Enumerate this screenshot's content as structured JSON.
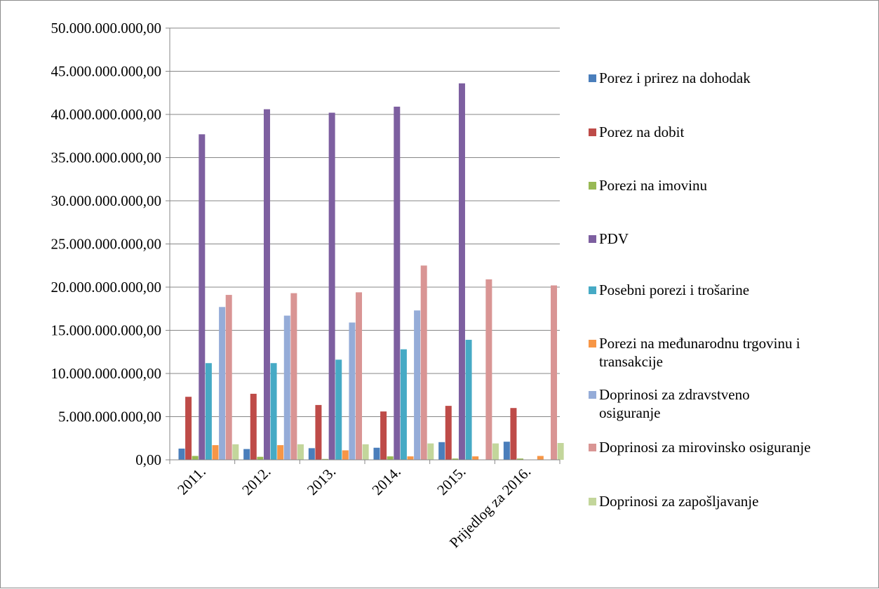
{
  "chart_data": {
    "type": "bar",
    "title": "",
    "xlabel": "",
    "ylabel": "",
    "ylim": [
      0,
      50000000000
    ],
    "y_ticks": [
      "0,00",
      "5.000.000.000,00",
      "10.000.000.000,00",
      "15.000.000.000,00",
      "20.000.000.000,00",
      "25.000.000.000,00",
      "30.000.000.000,00",
      "35.000.000.000,00",
      "40.000.000.000,00",
      "45.000.000.000,00",
      "50.000.000.000,00"
    ],
    "y_tick_values": [
      0,
      5000000000,
      10000000000,
      15000000000,
      20000000000,
      25000000000,
      30000000000,
      35000000000,
      40000000000,
      45000000000,
      50000000000
    ],
    "grid": "horizontal",
    "legend": "right",
    "categories": [
      "2011.",
      "2012.",
      "2013.",
      "2014.",
      "2015.",
      "Prijedlog za 2016."
    ],
    "series": [
      {
        "name": "Porez i prirez na dohodak",
        "color": "#4a7ebb",
        "values": [
          1300000000,
          1250000000,
          1350000000,
          1400000000,
          2050000000,
          2100000000
        ]
      },
      {
        "name": "Porez na dobit",
        "color": "#be4b48",
        "values": [
          7300000000,
          7650000000,
          6350000000,
          5600000000,
          6250000000,
          6000000000
        ]
      },
      {
        "name": "Porezi na imovinu",
        "color": "#98b954",
        "values": [
          450000000,
          350000000,
          100000000,
          400000000,
          150000000,
          150000000
        ]
      },
      {
        "name": "PDV",
        "color": "#7d5fa0",
        "values": [
          37700000000,
          40600000000,
          40200000000,
          40900000000,
          43600000000,
          0
        ]
      },
      {
        "name": "Posebni porezi i trošarine",
        "color": "#46aac5",
        "values": [
          11200000000,
          11200000000,
          11600000000,
          12800000000,
          13900000000,
          0
        ]
      },
      {
        "name": "Porezi na međunarodnu trgovinu i transakcije",
        "color": "#f79646",
        "values": [
          1700000000,
          1700000000,
          1100000000,
          400000000,
          400000000,
          450000000
        ]
      },
      {
        "name": "Doprinosi za zdravstveno osiguranje",
        "color": "#95acd8",
        "values": [
          17700000000,
          16700000000,
          15900000000,
          17300000000,
          0,
          0
        ]
      },
      {
        "name": "Doprinosi za mirovinsko osiguranje",
        "color": "#d99594",
        "values": [
          19100000000,
          19300000000,
          19400000000,
          22500000000,
          20900000000,
          20200000000
        ]
      },
      {
        "name": "Doprinosi za zapošljavanje",
        "color": "#c3d69b",
        "values": [
          1800000000,
          1800000000,
          1800000000,
          1900000000,
          1900000000,
          1950000000
        ]
      }
    ],
    "legend_lines": [
      [
        "Porez i prirez na dohodak"
      ],
      [
        "Porez na dobit"
      ],
      [
        "Porezi na imovinu"
      ],
      [
        "PDV"
      ],
      [
        "Posebni porezi i trošarine"
      ],
      [
        "Porezi na međunarodnu trgovinu i",
        "transakcije"
      ],
      [
        "Doprinosi za zdravstveno",
        "osiguranje"
      ],
      [
        "Doprinosi za mirovinsko osiguranje"
      ],
      [
        "Doprinosi za zapošljavanje"
      ]
    ]
  }
}
